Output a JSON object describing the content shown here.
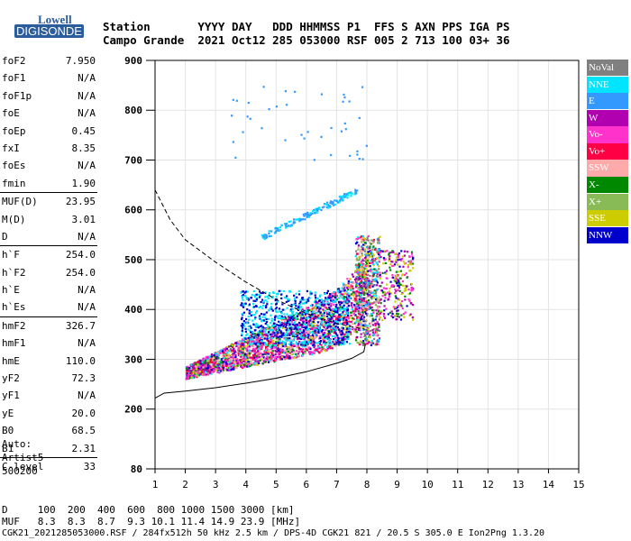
{
  "logo": {
    "brand": "Lowell",
    "name": "DIGISONDE"
  },
  "header": {
    "line1": "Station       YYYY DAY   DDD HHMMSS P1  FFS S AXN PPS IGA PS",
    "line2": "Campo Grande  2021 Oct12 285 053000 RSF 005 2 713 100 03+ 36"
  },
  "params": [
    [
      {
        "k": "foF2",
        "v": "7.950"
      },
      {
        "k": "foF1",
        "v": "N/A"
      },
      {
        "k": "foF1p",
        "v": "N/A"
      },
      {
        "k": "foE",
        "v": "N/A"
      },
      {
        "k": "foEp",
        "v": "0.45"
      },
      {
        "k": "fxI",
        "v": "8.35"
      },
      {
        "k": "foEs",
        "v": "N/A"
      },
      {
        "k": "fmin",
        "v": "1.90"
      }
    ],
    [
      {
        "k": "MUF(D)",
        "v": "23.95"
      },
      {
        "k": "M(D)",
        "v": "3.01"
      },
      {
        "k": "D",
        "v": "N/A"
      }
    ],
    [
      {
        "k": "h`F",
        "v": "254.0"
      },
      {
        "k": "h`F2",
        "v": "254.0"
      },
      {
        "k": "h`E",
        "v": "N/A"
      },
      {
        "k": "h`Es",
        "v": "N/A"
      }
    ],
    [
      {
        "k": "hmF2",
        "v": "326.7"
      },
      {
        "k": "hmF1",
        "v": "N/A"
      },
      {
        "k": "hmE",
        "v": "110.0"
      },
      {
        "k": "yF2",
        "v": "72.3"
      },
      {
        "k": "yF1",
        "v": "N/A"
      },
      {
        "k": "yE",
        "v": "20.0"
      },
      {
        "k": "B0",
        "v": "68.5"
      },
      {
        "k": "B1",
        "v": "2.31"
      }
    ],
    [
      {
        "k": "C-level",
        "v": "33"
      }
    ]
  ],
  "auto": {
    "line1": "Auto:",
    "line2": "Artist5",
    "line3": "500200"
  },
  "legend": [
    {
      "label": "NoVal",
      "color": "#808080"
    },
    {
      "label": "NNE",
      "color": "#00e5ff"
    },
    {
      "label": "E",
      "color": "#3399ff"
    },
    {
      "label": "W",
      "color": "#b000b0"
    },
    {
      "label": "Vo-",
      "color": "#ff33cc"
    },
    {
      "label": "Vo+",
      "color": "#ff0044"
    },
    {
      "label": "SSW",
      "color": "#ffaaaa"
    },
    {
      "label": "X-",
      "color": "#008800"
    },
    {
      "label": "X+",
      "color": "#88bb55"
    },
    {
      "label": "SSE",
      "color": "#cccc00"
    },
    {
      "label": "NNW",
      "color": "#0000cc"
    }
  ],
  "bottom": {
    "line1": "D     100  200  400  600  800 1000 1500 3000 [km]",
    "line2": "MUF   8.3  8.3  8.7  9.3 10.1 11.4 14.9 23.9 [MHz]",
    "line3": "CGK21_2021285053000.RSF / 284fx512h 50 kHz 2.5 km / DPS-4D CGK21 821 / 20.5 S 305.0 E Ion2Png 1.3.20"
  },
  "chart_data": {
    "type": "scatter",
    "xlim": [
      1,
      15
    ],
    "ylim": [
      80,
      900
    ],
    "x_ticks": [
      1,
      2,
      3,
      4,
      5,
      6,
      7,
      8,
      9,
      10,
      11,
      12,
      13,
      14,
      15
    ],
    "y_ticks": [
      80,
      200,
      300,
      400,
      500,
      600,
      700,
      800,
      900
    ],
    "grid": true,
    "legend": "right",
    "trace_solid": [
      [
        1.0,
        222
      ],
      [
        1.3,
        232
      ],
      [
        2,
        236
      ],
      [
        3,
        243
      ],
      [
        4,
        252
      ],
      [
        5,
        262
      ],
      [
        6,
        275
      ],
      [
        7,
        292
      ],
      [
        7.5,
        302
      ],
      [
        7.9,
        315
      ],
      [
        7.95,
        330
      ]
    ],
    "trace_dashed": [
      [
        1.0,
        640
      ],
      [
        1.5,
        580
      ],
      [
        2,
        540
      ],
      [
        3,
        495
      ],
      [
        4,
        455
      ],
      [
        5,
        420
      ],
      [
        6,
        392
      ],
      [
        7,
        372
      ],
      [
        7.95,
        360
      ]
    ]
  }
}
